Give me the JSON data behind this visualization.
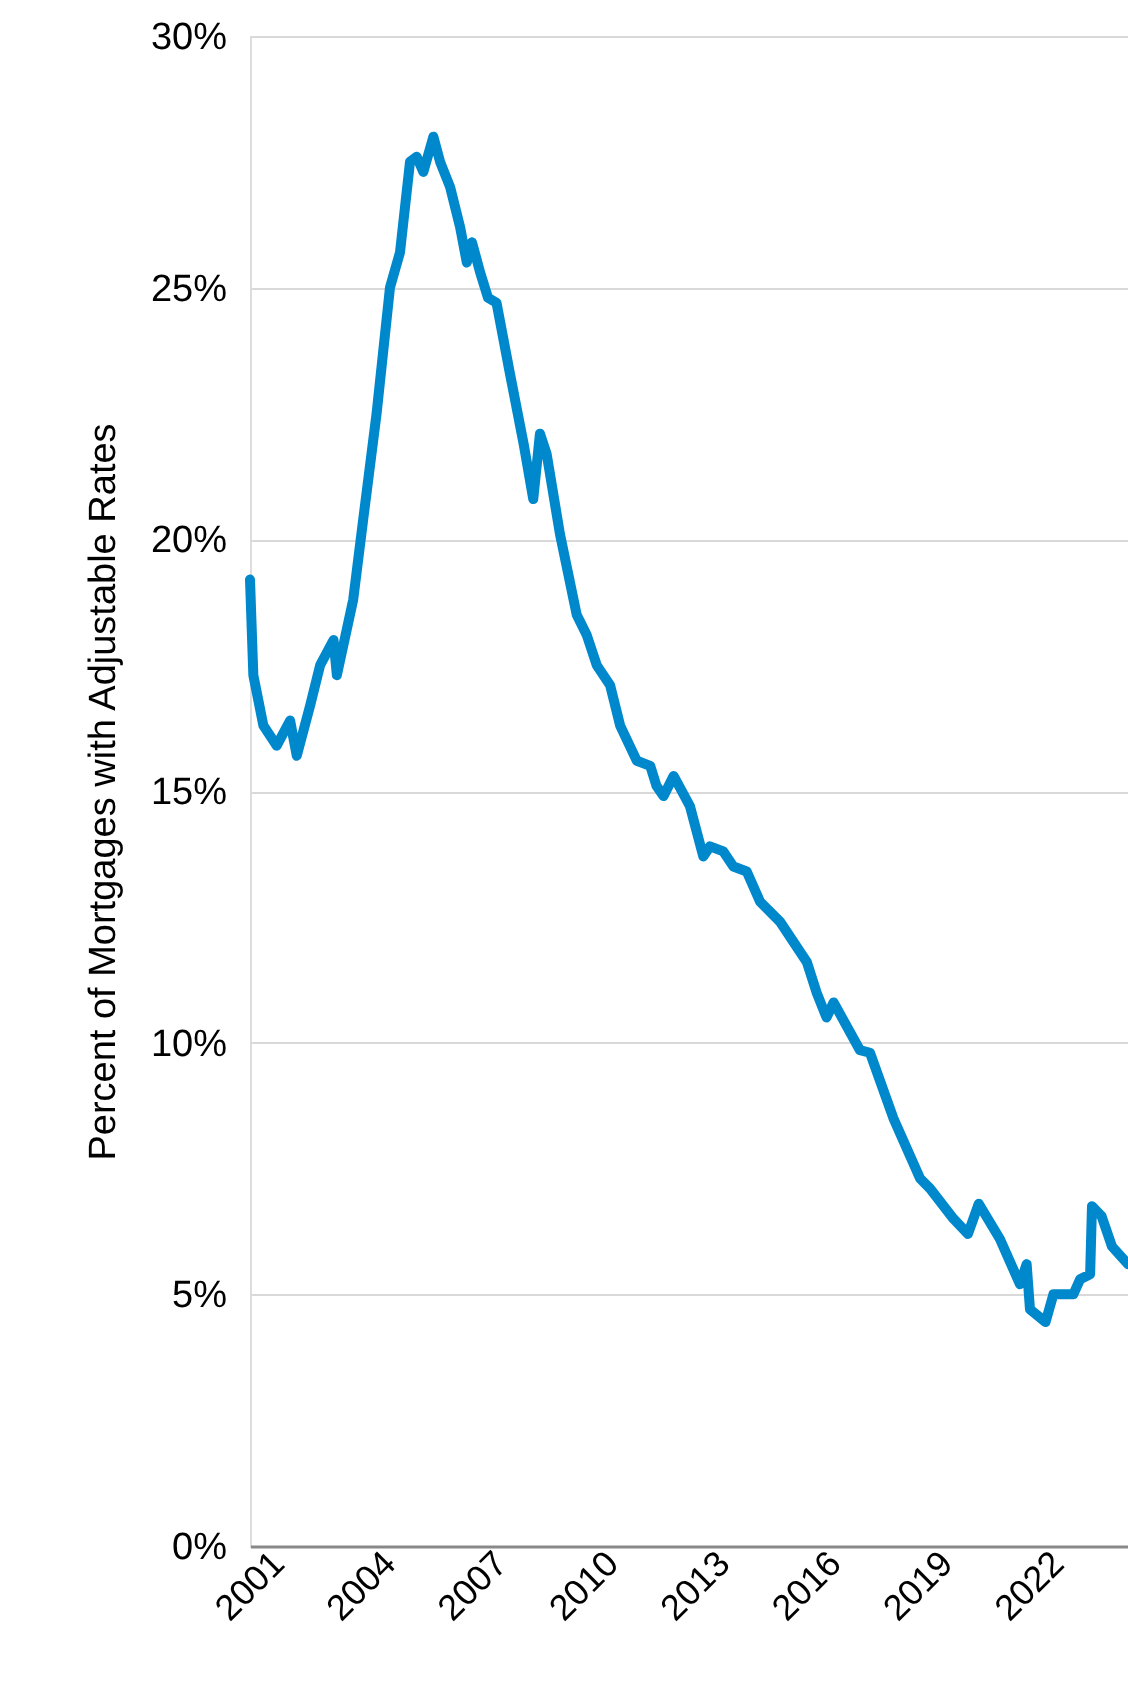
{
  "chart_data": {
    "type": "line",
    "ylabel": "Percent of Mortgages with Adjustable  Rates",
    "x": [
      2001.0,
      2001.09,
      2001.36,
      2001.72,
      2002.08,
      2002.26,
      2002.62,
      2002.89,
      2003.25,
      2003.34,
      2003.78,
      2004.05,
      2004.41,
      2004.77,
      2005.04,
      2005.31,
      2005.49,
      2005.67,
      2005.94,
      2006.12,
      2006.39,
      2006.66,
      2006.84,
      2006.98,
      2007.2,
      2007.41,
      2007.64,
      2008.0,
      2008.37,
      2008.63,
      2008.81,
      2008.99,
      2009.35,
      2009.8,
      2010.07,
      2010.34,
      2010.7,
      2010.97,
      2011.42,
      2011.78,
      2011.95,
      2012.14,
      2012.41,
      2012.85,
      2013.21,
      2013.39,
      2013.75,
      2014.02,
      2014.38,
      2014.74,
      2015.28,
      2016.0,
      2016.26,
      2016.53,
      2016.72,
      2017.43,
      2017.7,
      2018.33,
      2019.05,
      2019.32,
      2019.95,
      2020.34,
      2020.63,
      2021.2,
      2021.74,
      2021.92,
      2022.01,
      2022.43,
      2022.64,
      2023.18,
      2023.36,
      2023.63,
      2023.68,
      2023.94,
      2024.22,
      2024.65
    ],
    "series": [
      {
        "color": "#0088cc",
        "values": [
          19.2,
          17.3,
          16.3,
          15.9,
          16.4,
          15.7,
          16.7,
          17.5,
          18.0,
          17.3,
          18.8,
          20.4,
          22.5,
          25.0,
          25.7,
          27.5,
          27.6,
          27.3,
          28.0,
          27.5,
          27.0,
          26.2,
          25.5,
          25.9,
          25.3,
          24.8,
          24.7,
          23.3,
          21.9,
          20.8,
          22.1,
          21.7,
          20.1,
          18.5,
          18.1,
          17.5,
          17.1,
          16.3,
          15.6,
          15.5,
          15.1,
          14.9,
          15.3,
          14.7,
          13.7,
          13.9,
          13.8,
          13.5,
          13.4,
          12.8,
          12.4,
          11.6,
          11.0,
          10.5,
          10.8,
          9.85,
          9.8,
          8.5,
          7.3,
          7.1,
          6.5,
          6.2,
          6.8,
          6.1,
          5.2,
          5.6,
          4.7,
          4.45,
          5.0,
          5.0,
          5.3,
          5.4,
          6.75,
          6.55,
          5.95,
          5.6
        ]
      }
    ],
    "xlim": [
      2001,
      2024.65
    ],
    "xticks": [
      2001,
      2004,
      2007,
      2010,
      2013,
      2016,
      2019,
      2022
    ],
    "ylim": [
      0,
      30
    ],
    "yticks": [
      {
        "value": 0,
        "label": "0%"
      },
      {
        "value": 5,
        "label": "5%"
      },
      {
        "value": 10,
        "label": "10%"
      },
      {
        "value": 15,
        "label": "15%"
      },
      {
        "value": 20,
        "label": "20%"
      },
      {
        "value": 25,
        "label": "25%"
      },
      {
        "value": 30,
        "label": "30%"
      }
    ],
    "grid": "y",
    "marker": "none",
    "line_style": "solid"
  }
}
